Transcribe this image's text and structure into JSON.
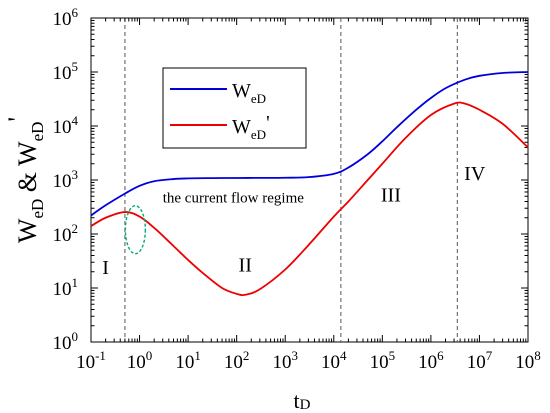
{
  "chart_data": {
    "type": "line",
    "title": "",
    "xlabel": {
      "main": "t",
      "sub": "D"
    },
    "ylabel": {
      "w1": "W",
      "w1_sub": "eD",
      "amp": " & ",
      "w2": "W",
      "w2_sub": "eD",
      "prime": "'"
    },
    "x_scale": "log",
    "y_scale": "log",
    "xlim": [
      0.1,
      100000000
    ],
    "ylim": [
      1,
      1000000
    ],
    "x_ticks": [
      {
        "base": "10",
        "exp": "-1"
      },
      {
        "base": "10",
        "exp": "0"
      },
      {
        "base": "10",
        "exp": "1"
      },
      {
        "base": "10",
        "exp": "2"
      },
      {
        "base": "10",
        "exp": "3"
      },
      {
        "base": "10",
        "exp": "4"
      },
      {
        "base": "10",
        "exp": "5"
      },
      {
        "base": "10",
        "exp": "6"
      },
      {
        "base": "10",
        "exp": "7"
      },
      {
        "base": "10",
        "exp": "8"
      }
    ],
    "y_ticks": [
      {
        "base": "10",
        "exp": "0"
      },
      {
        "base": "10",
        "exp": "1"
      },
      {
        "base": "10",
        "exp": "2"
      },
      {
        "base": "10",
        "exp": "3"
      },
      {
        "base": "10",
        "exp": "4"
      },
      {
        "base": "10",
        "exp": "5"
      },
      {
        "base": "10",
        "exp": "6"
      }
    ],
    "grid": false,
    "legend_position": "top-left",
    "series": [
      {
        "name": "W",
        "name_sub": "eD",
        "color": "#0000dd",
        "x": [
          0.1,
          0.2,
          0.5,
          1,
          2,
          5,
          10,
          30,
          100,
          300,
          1000,
          3000,
          10000,
          20000,
          50000,
          100000,
          200000,
          500000,
          1000000,
          2000000,
          5000000,
          10000000,
          30000000,
          100000000
        ],
        "y": [
          220,
          340,
          560,
          780,
          950,
          1040,
          1070,
          1085,
          1090,
          1095,
          1100,
          1130,
          1300,
          1700,
          3000,
          5200,
          9500,
          20000,
          33000,
          50000,
          72000,
          85000,
          96000,
          100000
        ]
      },
      {
        "name": "W",
        "name_sub": "eD",
        "name_suffix": "'",
        "color": "#ee0000",
        "x": [
          0.1,
          0.2,
          0.5,
          1,
          2,
          5,
          10,
          20,
          50,
          100,
          150,
          300,
          1000,
          3000,
          10000,
          20000,
          50000,
          100000,
          300000,
          1000000,
          3000000,
          5000000,
          10000000,
          30000000,
          100000000
        ],
        "y": [
          140,
          200,
          255,
          210,
          130,
          60,
          33,
          19,
          10,
          7.8,
          7.5,
          9.5,
          22,
          62,
          210,
          400,
          1000,
          2000,
          6000,
          16000,
          26000,
          26000,
          20000,
          11000,
          4000
        ]
      }
    ],
    "regime_boundaries": [
      0.5,
      14000,
      3500000
    ],
    "regions": [
      {
        "label": "I",
        "x": 0.2,
        "y": 18
      },
      {
        "label": "II",
        "x": 150,
        "y": 20
      },
      {
        "label": "III",
        "x": 150000,
        "y": 400
      },
      {
        "label": "IV",
        "x": 8000000,
        "y": 1000
      }
    ],
    "annotation": {
      "text": "the current flow regime",
      "x": 3,
      "y": 380
    },
    "highlight_ellipse": {
      "x": 0.82,
      "y": 120,
      "color": "#00aa77"
    }
  }
}
